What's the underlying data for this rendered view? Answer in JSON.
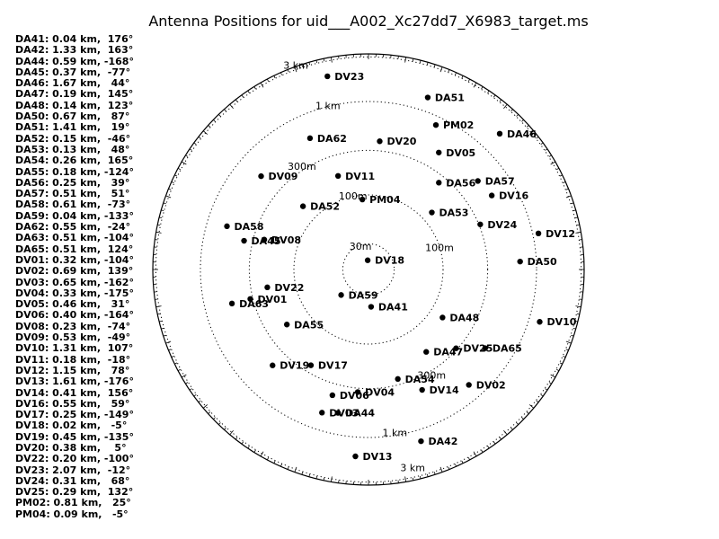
{
  "title": "Antenna Positions for uid___A002_Xc27dd7_X6983_target.ms",
  "chart_data": {
    "type": "scatter",
    "projection": "polar-log",
    "rings": [
      {
        "label": "30m"
      },
      {
        "label": "100m"
      },
      {
        "label": "300m"
      },
      {
        "label": "1 km"
      },
      {
        "label": "3 km"
      }
    ],
    "antennas": [
      {
        "name": "DA41",
        "dist_km": 0.04,
        "angle_deg": 176,
        "legend": "DA41: 0.04 km,  176°"
      },
      {
        "name": "DA42",
        "dist_km": 1.33,
        "angle_deg": 163,
        "legend": "DA42: 1.33 km,  163°"
      },
      {
        "name": "DA44",
        "dist_km": 0.59,
        "angle_deg": -168,
        "legend": "DA44: 0.59 km, -168°"
      },
      {
        "name": "DA45",
        "dist_km": 0.37,
        "angle_deg": -77,
        "legend": "DA45: 0.37 km,  -77°"
      },
      {
        "name": "DA46",
        "dist_km": 1.67,
        "angle_deg": 44,
        "legend": "DA46: 1.67 km,   44°"
      },
      {
        "name": "DA47",
        "dist_km": 0.19,
        "angle_deg": 145,
        "legend": "DA47: 0.19 km,  145°"
      },
      {
        "name": "DA48",
        "dist_km": 0.14,
        "angle_deg": 123,
        "legend": "DA48: 0.14 km,  123°"
      },
      {
        "name": "DA50",
        "dist_km": 0.67,
        "angle_deg": 87,
        "legend": "DA50: 0.67 km,   87°"
      },
      {
        "name": "DA51",
        "dist_km": 1.41,
        "angle_deg": 19,
        "legend": "DA51: 1.41 km,   19°"
      },
      {
        "name": "DA52",
        "dist_km": 0.15,
        "angle_deg": -46,
        "legend": "DA52: 0.15 km,  -46°"
      },
      {
        "name": "DA53",
        "dist_km": 0.13,
        "angle_deg": 48,
        "legend": "DA53: 0.13 km,   48°"
      },
      {
        "name": "DA54",
        "dist_km": 0.26,
        "angle_deg": 165,
        "legend": "DA54: 0.26 km,  165°"
      },
      {
        "name": "DA55",
        "dist_km": 0.18,
        "angle_deg": -124,
        "legend": "DA55: 0.18 km, -124°"
      },
      {
        "name": "DA56",
        "dist_km": 0.25,
        "angle_deg": 39,
        "legend": "DA56: 0.25 km,   39°"
      },
      {
        "name": "DA57",
        "dist_km": 0.51,
        "angle_deg": 51,
        "legend": "DA57: 0.51 km,   51°"
      },
      {
        "name": "DA58",
        "dist_km": 0.61,
        "angle_deg": -73,
        "legend": "DA58: 0.61 km,  -73°"
      },
      {
        "name": "DA59",
        "dist_km": 0.04,
        "angle_deg": -133,
        "legend": "DA59: 0.04 km, -133°"
      },
      {
        "name": "DA62",
        "dist_km": 0.55,
        "angle_deg": -24,
        "legend": "DA62: 0.55 km,  -24°"
      },
      {
        "name": "DA63",
        "dist_km": 0.51,
        "angle_deg": -104,
        "legend": "DA63: 0.51 km, -104°"
      },
      {
        "name": "DA65",
        "dist_km": 0.51,
        "angle_deg": 124,
        "legend": "DA65: 0.51 km,  124°"
      },
      {
        "name": "DV01",
        "dist_km": 0.32,
        "angle_deg": -104,
        "legend": "DV01: 0.32 km, -104°"
      },
      {
        "name": "DV02",
        "dist_km": 0.69,
        "angle_deg": 139,
        "legend": "DV02: 0.69 km,  139°"
      },
      {
        "name": "DV03",
        "dist_km": 0.65,
        "angle_deg": -162,
        "legend": "DV03: 0.65 km, -162°"
      },
      {
        "name": "DV04",
        "dist_km": 0.33,
        "angle_deg": -175,
        "legend": "DV04: 0.33 km, -175°"
      },
      {
        "name": "DV05",
        "dist_km": 0.46,
        "angle_deg": 31,
        "legend": "DV05: 0.46 km,   31°"
      },
      {
        "name": "DV06",
        "dist_km": 0.4,
        "angle_deg": -164,
        "legend": "DV06: 0.40 km, -164°"
      },
      {
        "name": "DV08",
        "dist_km": 0.23,
        "angle_deg": -74,
        "legend": "DV08: 0.23 km,  -74°"
      },
      {
        "name": "DV09",
        "dist_km": 0.53,
        "angle_deg": -49,
        "legend": "DV09: 0.53 km,  -49°"
      },
      {
        "name": "DV10",
        "dist_km": 1.31,
        "angle_deg": 107,
        "legend": "DV10: 1.31 km,  107°"
      },
      {
        "name": "DV11",
        "dist_km": 0.18,
        "angle_deg": -18,
        "legend": "DV11: 0.18 km,  -18°"
      },
      {
        "name": "DV12",
        "dist_km": 1.15,
        "angle_deg": 78,
        "legend": "DV12: 1.15 km,   78°"
      },
      {
        "name": "DV13",
        "dist_km": 1.61,
        "angle_deg": -176,
        "legend": "DV13: 1.61 km, -176°"
      },
      {
        "name": "DV14",
        "dist_km": 0.41,
        "angle_deg": 156,
        "legend": "DV14: 0.41 km,  156°"
      },
      {
        "name": "DV16",
        "dist_km": 0.55,
        "angle_deg": 59,
        "legend": "DV16: 0.55 km,   59°"
      },
      {
        "name": "DV17",
        "dist_km": 0.25,
        "angle_deg": -149,
        "legend": "DV17: 0.25 km, -149°"
      },
      {
        "name": "DV18",
        "dist_km": 0.02,
        "angle_deg": -5,
        "legend": "DV18: 0.02 km,   -5°"
      },
      {
        "name": "DV19",
        "dist_km": 0.45,
        "angle_deg": -135,
        "legend": "DV19: 0.45 km, -135°"
      },
      {
        "name": "DV20",
        "dist_km": 0.38,
        "angle_deg": 5,
        "legend": "DV20: 0.38 km,    5°"
      },
      {
        "name": "DV22",
        "dist_km": 0.2,
        "angle_deg": -100,
        "legend": "DV22: 0.20 km, -100°"
      },
      {
        "name": "DV23",
        "dist_km": 2.07,
        "angle_deg": -12,
        "legend": "DV23: 2.07 km,  -12°"
      },
      {
        "name": "DV24",
        "dist_km": 0.31,
        "angle_deg": 68,
        "legend": "DV24: 0.31 km,   68°"
      },
      {
        "name": "DV25",
        "dist_km": 0.29,
        "angle_deg": 132,
        "legend": "DV25: 0.29 km,  132°"
      },
      {
        "name": "PM02",
        "dist_km": 0.81,
        "angle_deg": 25,
        "legend": "PM02: 0.81 km,   25°"
      },
      {
        "name": "PM04",
        "dist_km": 0.09,
        "angle_deg": -5,
        "legend": "PM04: 0.09 km,   -5°"
      }
    ]
  }
}
